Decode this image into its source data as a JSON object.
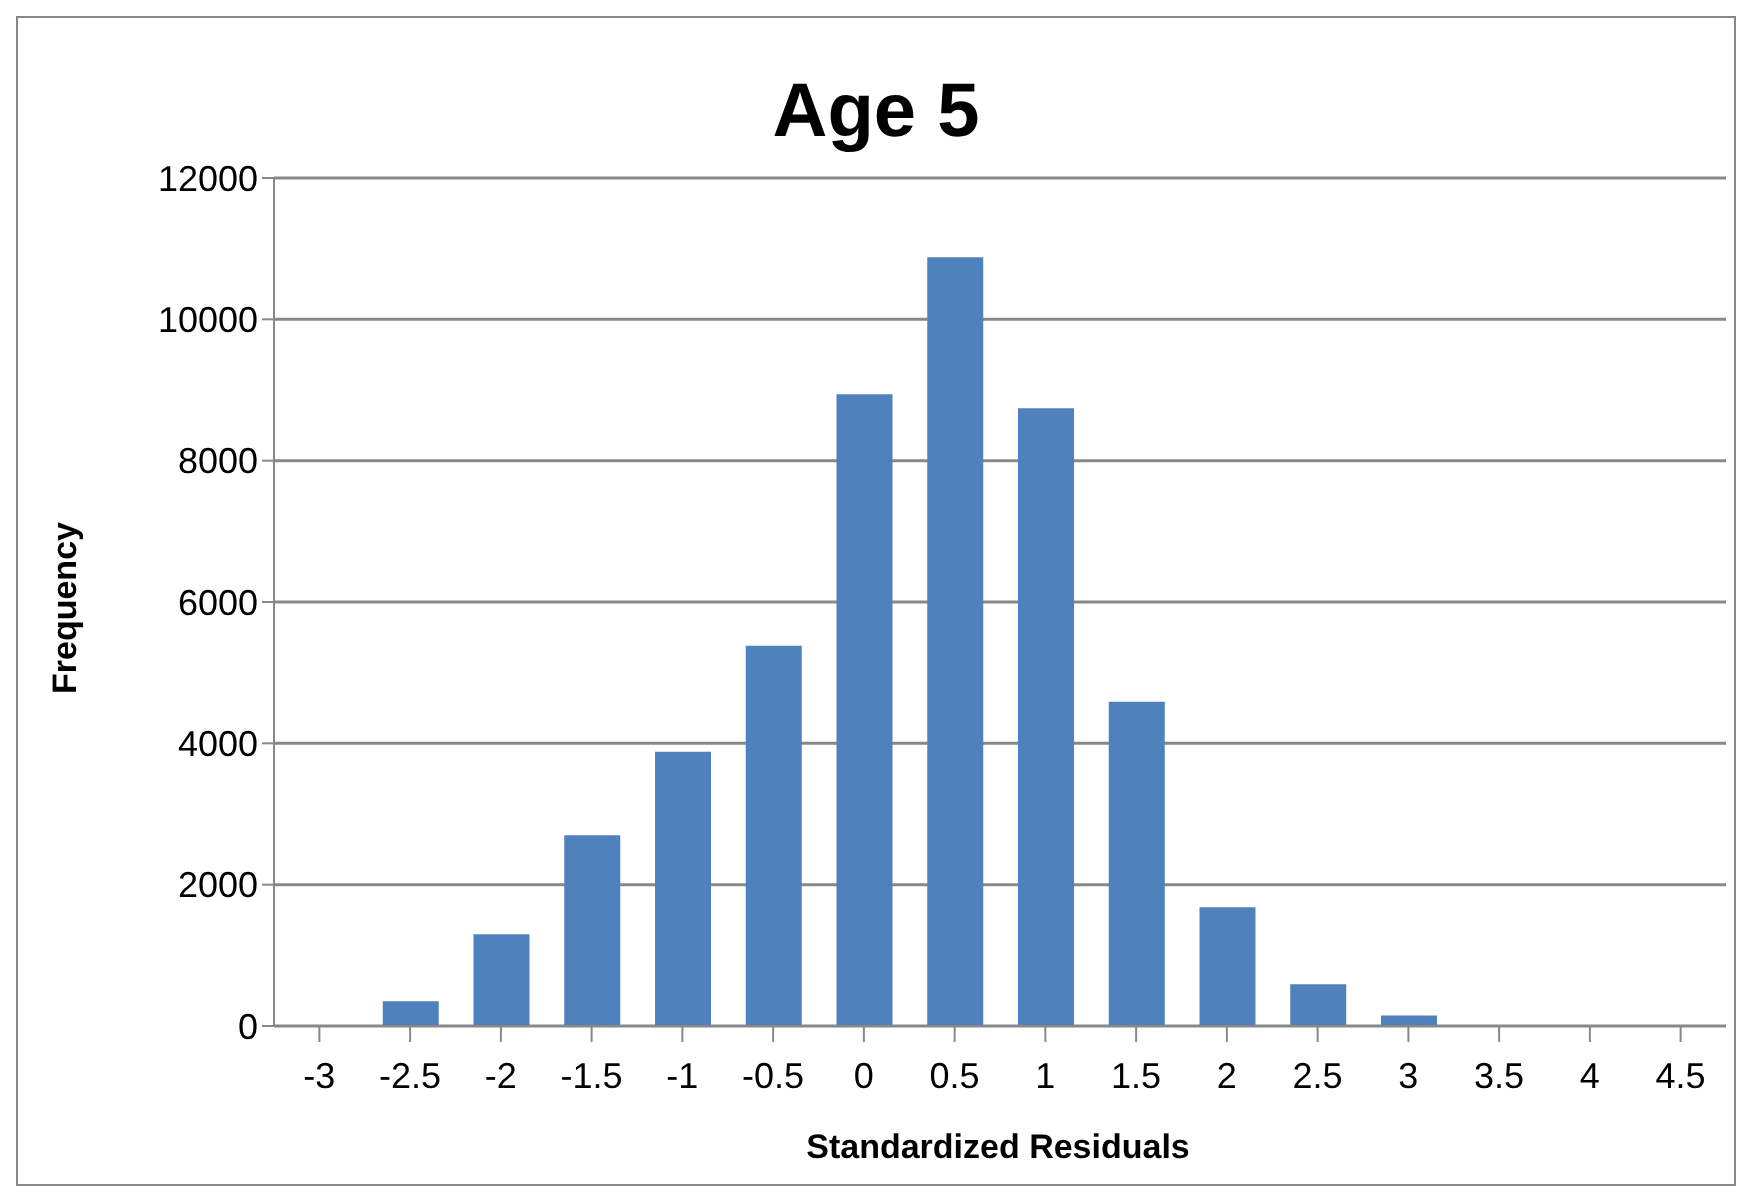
{
  "chart_data": {
    "type": "bar",
    "title": "Age 5",
    "xlabel": "Standardized Residuals",
    "ylabel": "Frequency",
    "categories": [
      "-3",
      "-2.5",
      "-2",
      "-1.5",
      "-1",
      "-0.5",
      "0",
      "0.5",
      "1",
      "1.5",
      "2",
      "2.5",
      "3",
      "3.5",
      "4",
      "4.5"
    ],
    "values": [
      null,
      350,
      1300,
      2700,
      3880,
      5380,
      8940,
      10880,
      8740,
      4590,
      1680,
      590,
      150,
      null,
      null,
      null
    ],
    "color": "#4f81bd",
    "ylim": [
      0,
      12000
    ],
    "yticks": [
      0,
      2000,
      4000,
      6000,
      8000,
      10000,
      12000
    ],
    "grid": "y"
  }
}
